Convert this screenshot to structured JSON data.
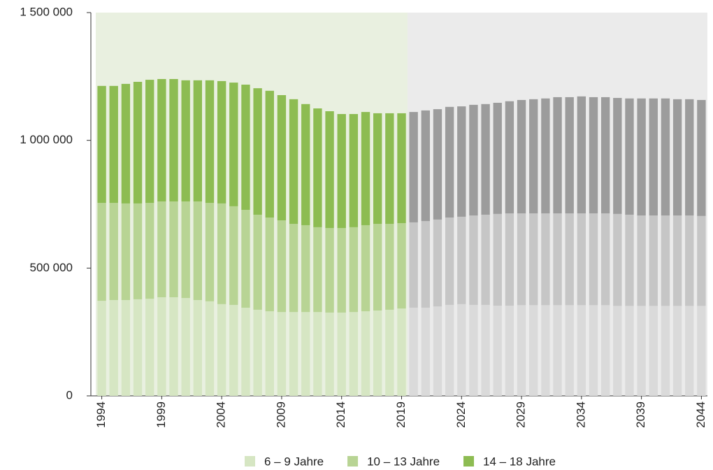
{
  "chart_data": {
    "type": "stacked_bar",
    "categories": [
      "1994",
      null,
      null,
      null,
      null,
      "1999",
      null,
      null,
      null,
      null,
      "2004",
      null,
      null,
      null,
      null,
      "2009",
      null,
      null,
      null,
      null,
      "2014",
      null,
      null,
      null,
      null,
      "2019",
      null,
      null,
      null,
      null,
      "2024",
      null,
      null,
      null,
      null,
      "2029",
      null,
      null,
      null,
      null,
      "2034",
      null,
      null,
      null,
      null,
      "2039",
      null,
      null,
      null,
      null,
      "2044"
    ],
    "projection_start": 26,
    "background_color": "#e9f0e0",
    "projection_background_color": "#ebebeb",
    "series": [
      {
        "name": "6 – 9 Jahre",
        "color": "#d6e6c3",
        "projection_color": "#dadada",
        "values": [
          372000,
          375000,
          375000,
          378000,
          380000,
          386000,
          386000,
          383000,
          375000,
          370000,
          359000,
          356000,
          345000,
          337000,
          331000,
          328000,
          328000,
          328000,
          328000,
          326000,
          326000,
          328000,
          331000,
          334000,
          337000,
          342000,
          345000,
          345000,
          350000,
          356000,
          359000,
          356000,
          356000,
          353000,
          353000,
          355000,
          355000,
          355000,
          355000,
          355000,
          355000,
          355000,
          355000,
          352000,
          352000,
          352000,
          352000,
          352000,
          352000,
          352000,
          352000
        ]
      },
      {
        "name": "10 – 13 Jahre",
        "color": "#b8d494",
        "projection_color": "#c6c6c6",
        "values": [
          383000,
          380000,
          378000,
          375000,
          375000,
          375000,
          375000,
          378000,
          386000,
          385000,
          394000,
          386000,
          383000,
          372000,
          367000,
          359000,
          345000,
          340000,
          332000,
          331000,
          331000,
          332000,
          337000,
          339000,
          336000,
          334000,
          334000,
          339000,
          340000,
          342000,
          342000,
          350000,
          353000,
          359000,
          361000,
          359000,
          359000,
          359000,
          359000,
          359000,
          359000,
          359000,
          359000,
          360000,
          357000,
          354000,
          354000,
          354000,
          354000,
          354000,
          352000
        ]
      },
      {
        "name": "14 – 18 Jahre",
        "color": "#8dbc52",
        "projection_color": "#9c9c9c",
        "values": [
          458000,
          458000,
          468000,
          476000,
          482000,
          479000,
          479000,
          474000,
          474000,
          480000,
          479000,
          484000,
          490000,
          495000,
          496000,
          490000,
          488000,
          474000,
          465000,
          457000,
          446000,
          443000,
          443000,
          433000,
          433000,
          430000,
          432000,
          433000,
          432000,
          433000,
          432000,
          433000,
          433000,
          435000,
          439000,
          444000,
          447000,
          450000,
          455000,
          455000,
          458000,
          455000,
          455000,
          454000,
          455000,
          458000,
          458000,
          458000,
          455000,
          455000,
          454000
        ]
      }
    ],
    "ylim": [
      0,
      1500000
    ],
    "yticks": [
      0,
      {
        "value": 500000,
        "label": "500 000"
      },
      {
        "value": 1000000,
        "label": "1 000 000"
      },
      {
        "value": 1500000,
        "label": "1 500 000"
      }
    ],
    "legend": "bottom"
  }
}
